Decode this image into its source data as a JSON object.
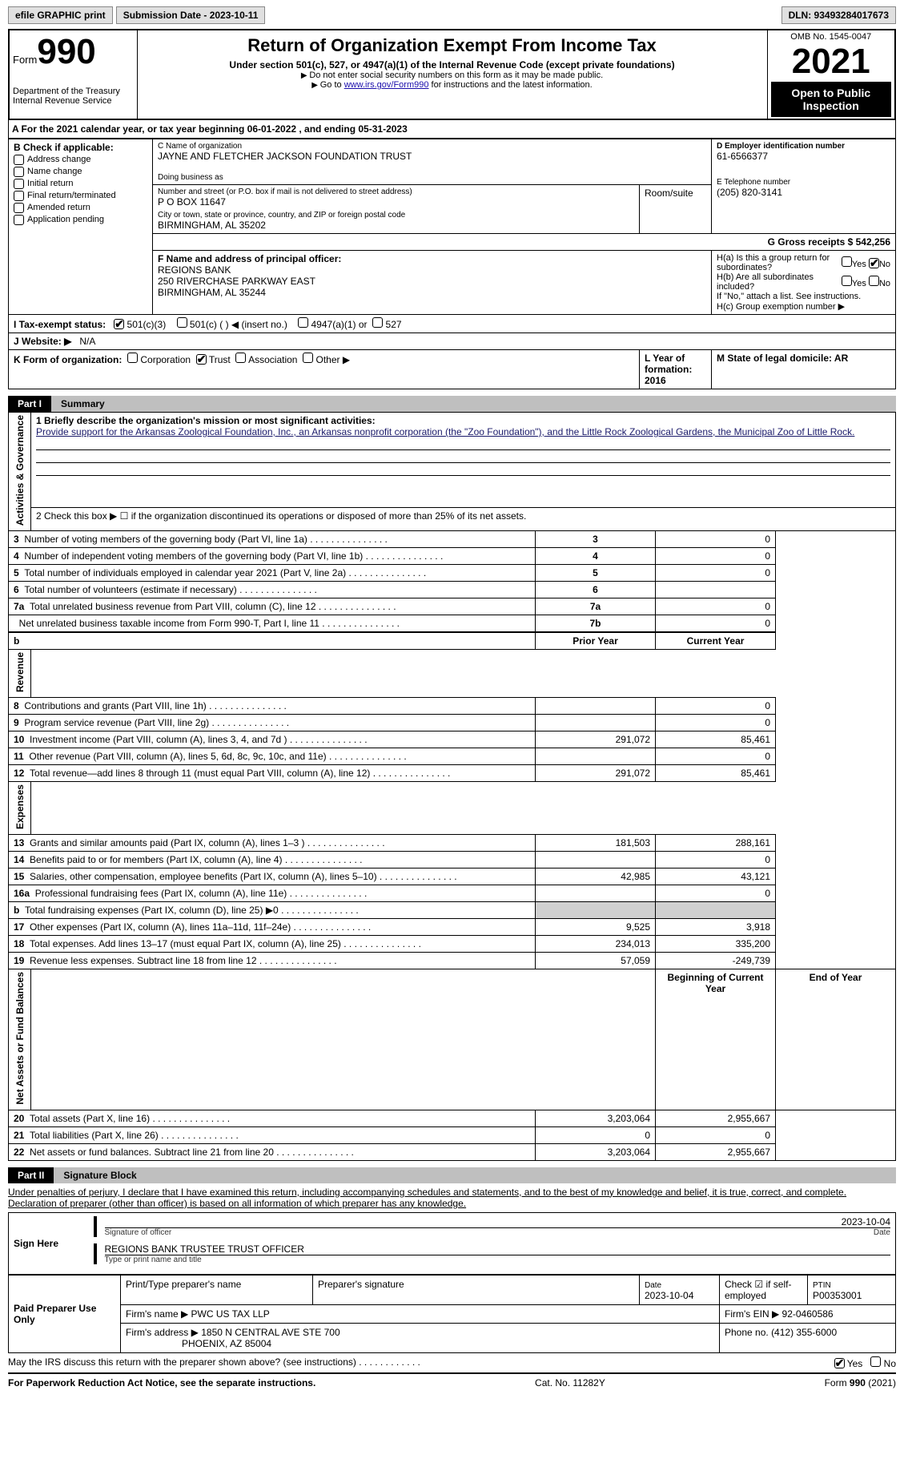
{
  "topbar": {
    "efile_btn": "efile GRAPHIC print",
    "submission_label": "Submission Date - 2023-10-11",
    "dln_label": "DLN: 93493284017673"
  },
  "header": {
    "form_word": "Form",
    "form_number": "990",
    "dept": "Department of the Treasury\nInternal Revenue Service",
    "main_title": "Return of Organization Exempt From Income Tax",
    "sub_title": "Under section 501(c), 527, or 4947(a)(1) of the Internal Revenue Code (except private foundations)",
    "no_ssn": "Do not enter social security numbers on this form as it may be made public.",
    "goto_prefix": "Go to ",
    "goto_link": "www.irs.gov/Form990",
    "goto_suffix": " for instructions and the latest information.",
    "omb": "OMB No. 1545-0047",
    "year": "2021",
    "open_inspection": "Open to Public Inspection"
  },
  "section_a": "A For the 2021 calendar year, or tax year beginning 06-01-2022   , and ending 05-31-2023",
  "section_b": {
    "label": "B Check if applicable:",
    "items": [
      {
        "label": "Address change",
        "checked": false
      },
      {
        "label": "Name change",
        "checked": false
      },
      {
        "label": "Initial return",
        "checked": false
      },
      {
        "label": "Final return/terminated",
        "checked": false
      },
      {
        "label": "Amended return",
        "checked": false
      },
      {
        "label": "Application pending",
        "checked": false
      }
    ]
  },
  "section_c": {
    "label": "C Name of organization",
    "name": "JAYNE AND FLETCHER JACKSON FOUNDATION TRUST",
    "dba_label": "Doing business as",
    "addr_label": "Number and street (or P.O. box if mail is not delivered to street address)",
    "room_label": "Room/suite",
    "address": "P O BOX 11647",
    "city_label": "City or town, state or province, country, and ZIP or foreign postal code",
    "city": "BIRMINGHAM, AL  35202"
  },
  "section_d": {
    "label": "D Employer identification number",
    "value": "61-6566377"
  },
  "section_e": {
    "label": "E Telephone number",
    "value": "(205) 820-3141"
  },
  "section_g": {
    "label": "G Gross receipts $ 542,256"
  },
  "section_f": {
    "label": "F  Name and address of principal officer:",
    "line1": "REGIONS BANK",
    "line2": "250 RIVERCHASE PARKWAY EAST",
    "line3": "BIRMINGHAM, AL  35244"
  },
  "section_h": {
    "ha_label": "H(a)  Is this a group return for subordinates?",
    "ha_yes": "Yes",
    "ha_no": "No",
    "ha_no_checked": true,
    "hb_label": "H(b)  Are all subordinates included?",
    "hb_note": "If \"No,\" attach a list. See instructions.",
    "hc_label": "H(c)  Group exemption number ▶"
  },
  "section_i": {
    "label": "I  Tax-exempt status:",
    "opt1": "501(c)(3)",
    "opt1_checked": true,
    "opt2": "501(c) (  ) ◀ (insert no.)",
    "opt3": "4947(a)(1) or",
    "opt4": "527"
  },
  "section_j": {
    "label": "J  Website: ▶",
    "value": "N/A"
  },
  "section_k": {
    "label": "K Form of organization:",
    "opts": [
      {
        "label": "Corporation",
        "checked": false
      },
      {
        "label": "Trust",
        "checked": true
      },
      {
        "label": "Association",
        "checked": false
      },
      {
        "label": "Other ▶",
        "checked": false
      }
    ]
  },
  "section_l": {
    "label": "L Year of formation: 2016"
  },
  "section_m": {
    "label": "M State of legal domicile: AR"
  },
  "part1": {
    "label": "Part I",
    "title": "Summary"
  },
  "summary": {
    "line1_label": "1  Briefly describe the organization's mission or most significant activities:",
    "mission": "Provide support for the Arkansas Zoological Foundation, Inc., an Arkansas nonprofit corporation (the \"Zoo Foundation\"), and the Little Rock Zoological Gardens, the Municipal Zoo of Little Rock.",
    "line2": "2   Check this box ▶ ☐  if the organization discontinued its operations or disposed of more than 25% of its net assets.",
    "rows_a": [
      {
        "n": "3",
        "text": "Number of voting members of the governing body (Part VI, line 1a)",
        "box": "3",
        "val": "0"
      },
      {
        "n": "4",
        "text": "Number of independent voting members of the governing body (Part VI, line 1b)",
        "box": "4",
        "val": "0"
      },
      {
        "n": "5",
        "text": "Total number of individuals employed in calendar year 2021 (Part V, line 2a)",
        "box": "5",
        "val": "0"
      },
      {
        "n": "6",
        "text": "Total number of volunteers (estimate if necessary)",
        "box": "6",
        "val": ""
      },
      {
        "n": "7a",
        "text": "Total unrelated business revenue from Part VIII, column (C), line 12",
        "box": "7a",
        "val": "0"
      },
      {
        "n": "",
        "text": "Net unrelated business taxable income from Form 990-T, Part I, line 11",
        "box": "7b",
        "val": "0"
      }
    ],
    "col_headers": {
      "b": "b",
      "prior": "Prior Year",
      "curr": "Current Year"
    },
    "rows_rev": [
      {
        "n": "8",
        "text": "Contributions and grants (Part VIII, line 1h)",
        "prior": "",
        "curr": "0"
      },
      {
        "n": "9",
        "text": "Program service revenue (Part VIII, line 2g)",
        "prior": "",
        "curr": "0"
      },
      {
        "n": "10",
        "text": "Investment income (Part VIII, column (A), lines 3, 4, and 7d )",
        "prior": "291,072",
        "curr": "85,461"
      },
      {
        "n": "11",
        "text": "Other revenue (Part VIII, column (A), lines 5, 6d, 8c, 9c, 10c, and 11e)",
        "prior": "",
        "curr": "0"
      },
      {
        "n": "12",
        "text": "Total revenue—add lines 8 through 11 (must equal Part VIII, column (A), line 12)",
        "prior": "291,072",
        "curr": "85,461"
      }
    ],
    "rows_exp": [
      {
        "n": "13",
        "text": "Grants and similar amounts paid (Part IX, column (A), lines 1–3 )",
        "prior": "181,503",
        "curr": "288,161"
      },
      {
        "n": "14",
        "text": "Benefits paid to or for members (Part IX, column (A), line 4)",
        "prior": "",
        "curr": "0"
      },
      {
        "n": "15",
        "text": "Salaries, other compensation, employee benefits (Part IX, column (A), lines 5–10)",
        "prior": "42,985",
        "curr": "43,121"
      },
      {
        "n": "16a",
        "text": "Professional fundraising fees (Part IX, column (A), line 11e)",
        "prior": "",
        "curr": "0"
      },
      {
        "n": "b",
        "text": "Total fundraising expenses (Part IX, column (D), line 25) ▶0",
        "prior": "SHADE",
        "curr": "SHADE"
      },
      {
        "n": "17",
        "text": "Other expenses (Part IX, column (A), lines 11a–11d, 11f–24e)",
        "prior": "9,525",
        "curr": "3,918"
      },
      {
        "n": "18",
        "text": "Total expenses. Add lines 13–17 (must equal Part IX, column (A), line 25)",
        "prior": "234,013",
        "curr": "335,200"
      },
      {
        "n": "19",
        "text": "Revenue less expenses. Subtract line 18 from line 12",
        "prior": "57,059",
        "curr": "-249,739"
      }
    ],
    "col_headers2": {
      "begin": "Beginning of Current Year",
      "end": "End of Year"
    },
    "rows_net": [
      {
        "n": "20",
        "text": "Total assets (Part X, line 16)",
        "prior": "3,203,064",
        "curr": "2,955,667"
      },
      {
        "n": "21",
        "text": "Total liabilities (Part X, line 26)",
        "prior": "0",
        "curr": "0"
      },
      {
        "n": "22",
        "text": "Net assets or fund balances. Subtract line 21 from line 20",
        "prior": "3,203,064",
        "curr": "2,955,667"
      }
    ],
    "vert_labels": {
      "activities": "Activities & Governance",
      "revenue": "Revenue",
      "expenses": "Expenses",
      "net": "Net Assets or Fund Balances"
    }
  },
  "part2": {
    "label": "Part II",
    "title": "Signature Block"
  },
  "penalty_text": "Under penalties of perjury, I declare that I have examined this return, including accompanying schedules and statements, and to the best of my knowledge and belief, it is true, correct, and complete. Declaration of preparer (other than officer) is based on all information of which preparer has any knowledge.",
  "sign_here": {
    "label": "Sign Here",
    "sig_label": "Signature of officer",
    "date_label": "Date",
    "date_val": "2023-10-04",
    "name_val": "REGIONS BANK TRUSTEE  TRUST OFFICER",
    "name_label": "Type or print name and title"
  },
  "preparer": {
    "label": "Paid Preparer Use Only",
    "col1": "Print/Type preparer's name",
    "col2": "Preparer's signature",
    "col3_label": "Date",
    "col3_val": "2023-10-04",
    "col4_label": "Check ☑ if self-employed",
    "col5_label": "PTIN",
    "col5_val": "P00353001",
    "firm_name_label": "Firm's name    ▶",
    "firm_name": "PWC US TAX LLP",
    "firm_ein_label": "Firm's EIN ▶",
    "firm_ein": "92-0460586",
    "firm_addr_label": "Firm's address ▶",
    "firm_addr1": "1850 N CENTRAL AVE STE 700",
    "firm_addr2": "PHOENIX, AZ  85004",
    "phone_label": "Phone no.",
    "phone": "(412) 355-6000"
  },
  "discuss": {
    "text": "May the IRS discuss this return with the preparer shown above? (see instructions)",
    "yes": "Yes",
    "no": "No",
    "yes_checked": true
  },
  "footer": {
    "left": "For Paperwork Reduction Act Notice, see the separate instructions.",
    "mid": "Cat. No. 11282Y",
    "right": "Form 990 (2021)"
  }
}
